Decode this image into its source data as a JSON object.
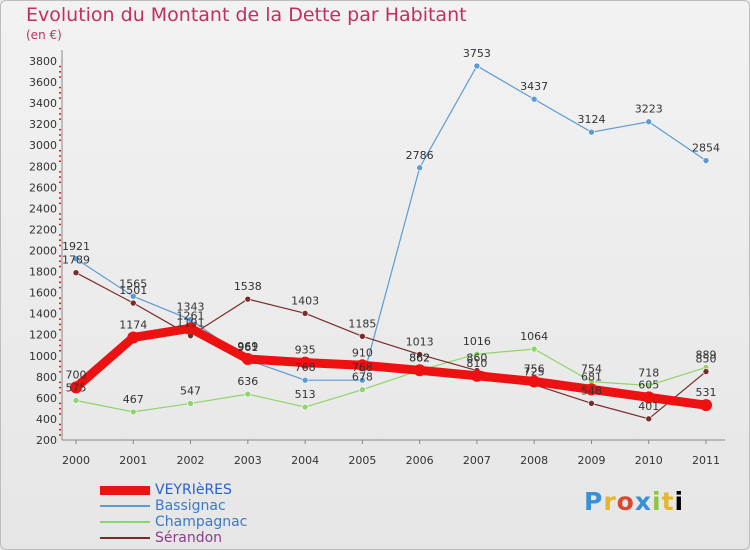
{
  "header": {
    "title": "Evolution du Montant de la Dette par Habitant",
    "subtitle": "(en €)"
  },
  "logo": {
    "chars": [
      "P",
      "r",
      "o",
      "x",
      "i",
      "t",
      "i"
    ],
    "text": "Proxiti"
  },
  "colors": {
    "title": "#c0305e",
    "VEYRIèRES": "#ee1111",
    "Bassignac": "#5b9bd5",
    "Champagnac": "#8fd46a",
    "Sérandon": "#7a2a2a"
  },
  "chart_data": {
    "type": "line",
    "title": "Evolution du Montant de la Dette par Habitant",
    "subtitle": "(en €)",
    "x": [
      "2000",
      "2001",
      "2002",
      "2003",
      "2004",
      "2005",
      "2006",
      "2007",
      "2008",
      "2009",
      "2010",
      "2011"
    ],
    "ylim": [
      200,
      3800
    ],
    "yticks": [
      200,
      400,
      600,
      800,
      1000,
      1200,
      1400,
      1600,
      1800,
      2000,
      2200,
      2400,
      2600,
      2800,
      3000,
      3200,
      3400,
      3600,
      3800
    ],
    "grid": false,
    "legend_position": "bottom-left",
    "series": [
      {
        "name": "VEYRIèRES",
        "color": "#ee1111",
        "values": [
          700,
          1174,
          1261,
          969,
          935,
          910,
          862,
          810,
          756,
          681,
          605,
          531
        ]
      },
      {
        "name": "Bassignac",
        "color": "#5b9bd5",
        "values": [
          1921,
          1565,
          1343,
          961,
          768,
          768,
          2786,
          3753,
          3437,
          3124,
          3223,
          2854
        ]
      },
      {
        "name": "Champagnac",
        "color": "#8fd46a",
        "values": [
          575,
          467,
          547,
          636,
          513,
          678,
          862,
          1016,
          1064,
          754,
          718,
          889
        ]
      },
      {
        "name": "Sérandon",
        "color": "#7a2a2a",
        "values": [
          1789,
          1501,
          1191,
          1538,
          1403,
          1185,
          1013,
          860,
          725,
          548,
          401,
          850
        ]
      }
    ]
  }
}
